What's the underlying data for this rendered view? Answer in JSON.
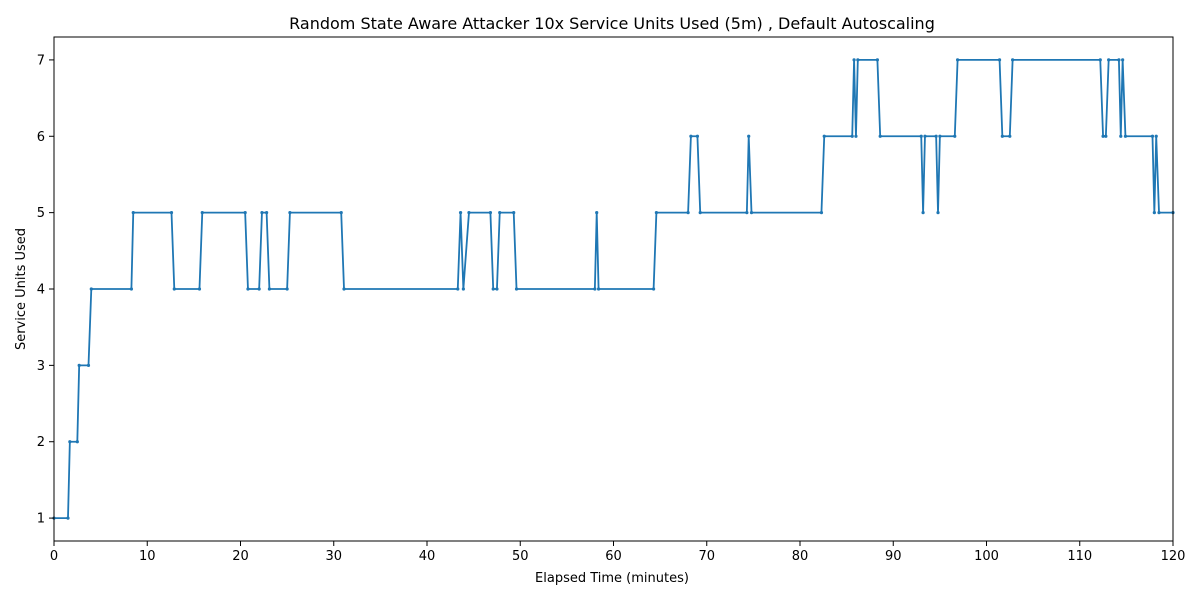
{
  "chart_data": {
    "type": "line",
    "title": "Random State Aware Attacker 10x Service Units Used (5m) , Default Autoscaling",
    "xlabel": "Elapsed Time (minutes)",
    "ylabel": "Service Units Used",
    "xlim": [
      0,
      120
    ],
    "ylim": [
      0.7,
      7.3
    ],
    "xticks": [
      0,
      10,
      20,
      30,
      40,
      50,
      60,
      70,
      80,
      90,
      100,
      110,
      120
    ],
    "yticks": [
      1,
      2,
      3,
      4,
      5,
      6,
      7
    ],
    "grid": false,
    "legend": "none",
    "line_color": "#1f77b4",
    "marker": "dot",
    "series": [
      {
        "x": [
          0,
          1.5,
          1.7,
          2.5,
          2.7,
          3.7,
          4.0,
          8.3,
          8.5,
          12.6,
          12.9,
          15.6,
          15.9,
          20.5,
          20.8,
          22.0,
          22.3,
          22.8,
          23.1,
          25.0,
          25.3,
          30.8,
          31.1,
          43.3,
          43.6,
          43.9,
          44.5,
          46.8,
          47.1,
          47.5,
          47.8,
          49.3,
          49.6,
          58.0,
          58.2,
          58.4,
          64.3,
          64.6,
          68.0,
          68.3,
          69.0,
          69.3,
          74.3,
          74.5,
          74.8,
          82.3,
          82.6,
          85.6,
          85.8,
          86.0,
          86.2,
          88.3,
          88.6,
          93.0,
          93.2,
          93.4,
          94.6,
          94.8,
          95.0,
          96.6,
          96.9,
          101.4,
          101.7,
          102.5,
          102.8,
          112.2,
          112.5,
          112.8,
          113.1,
          114.2,
          114.4,
          114.6,
          114.9,
          117.8,
          118.0,
          118.2,
          118.5,
          120.0
        ],
        "y": [
          1,
          1,
          2,
          2,
          3,
          3,
          4,
          4,
          5,
          5,
          4,
          4,
          5,
          5,
          4,
          4,
          5,
          5,
          4,
          4,
          5,
          5,
          4,
          4,
          5,
          4,
          5,
          5,
          4,
          4,
          5,
          5,
          4,
          4,
          5,
          4,
          4,
          5,
          5,
          6,
          6,
          5,
          5,
          6,
          5,
          5,
          6,
          6,
          7,
          6,
          7,
          7,
          6,
          6,
          5,
          6,
          6,
          5,
          6,
          6,
          7,
          7,
          6,
          6,
          7,
          7,
          6,
          6,
          7,
          7,
          6,
          7,
          6,
          6,
          5,
          6,
          5,
          5
        ]
      }
    ]
  }
}
